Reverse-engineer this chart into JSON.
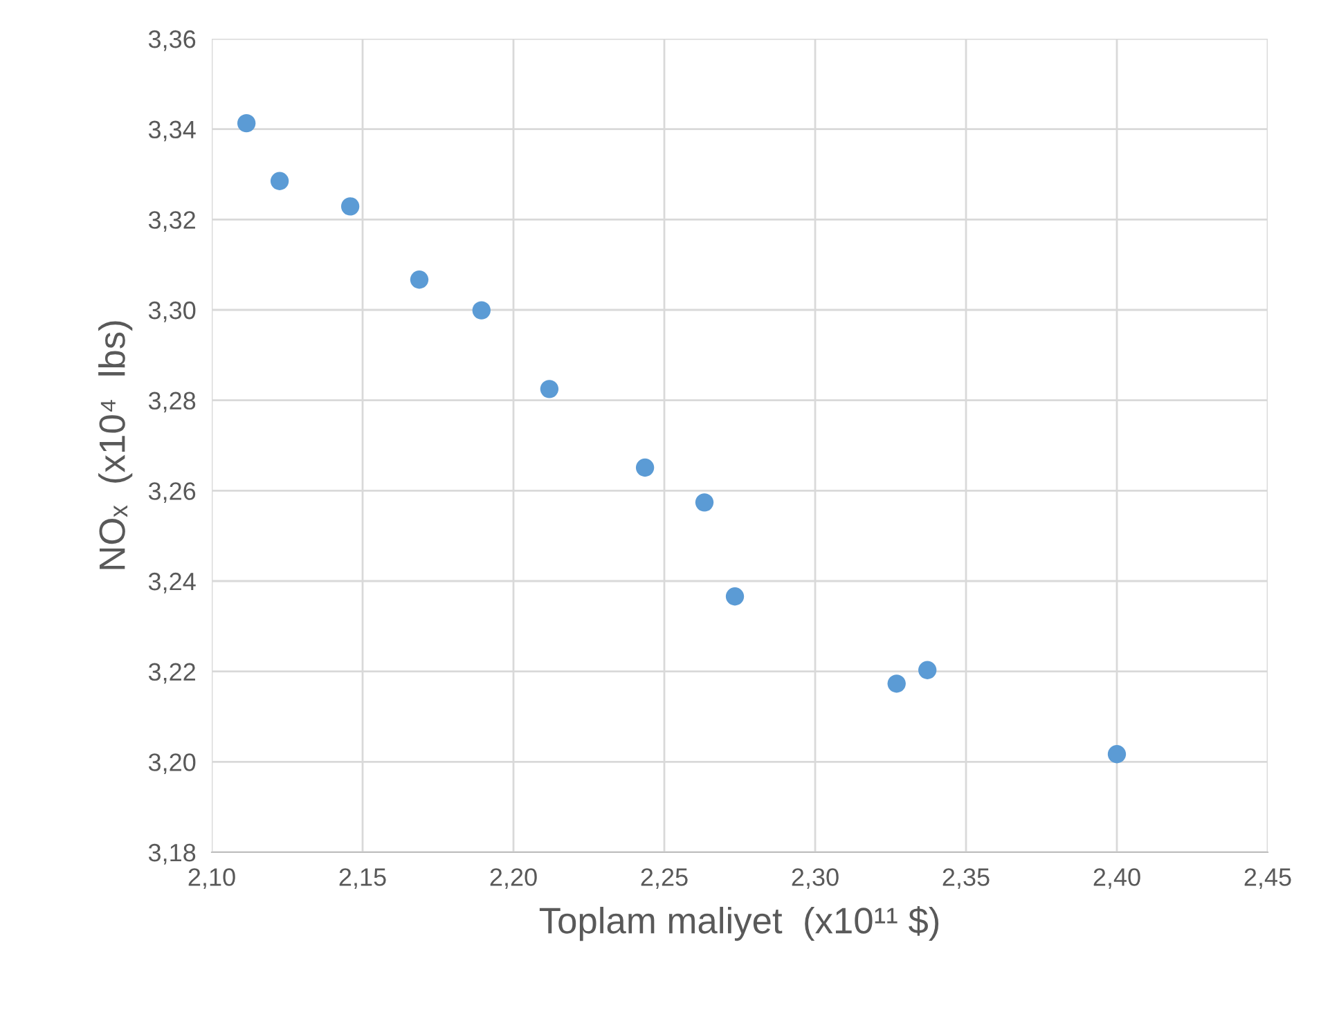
{
  "chart_data": {
    "type": "scatter",
    "xlabel": "Toplam maliyet  (x10¹¹ $)",
    "ylabel": "NOₓ  (x10⁴  lbs)",
    "x": [
      2.1115,
      2.1225,
      2.1459,
      2.1688,
      2.1894,
      2.2119,
      2.2436,
      2.2633,
      2.2734,
      2.327,
      2.3372,
      2.4
    ],
    "series": [
      {
        "color": "#5b9bd5",
        "values": [
          3.3413,
          3.3285,
          3.3229,
          3.3067,
          3.2999,
          3.2825,
          3.2651,
          3.2574,
          3.2366,
          3.2173,
          3.2203,
          3.2017
        ]
      }
    ],
    "xlim": [
      2.1,
      2.45
    ],
    "ylim": [
      3.18,
      3.36
    ],
    "xticks": [
      {
        "value": 2.1,
        "label": "2,10"
      },
      {
        "value": 2.15,
        "label": "2,15"
      },
      {
        "value": 2.2,
        "label": "2,20"
      },
      {
        "value": 2.25,
        "label": "2,25"
      },
      {
        "value": 2.3,
        "label": "2,30"
      },
      {
        "value": 2.35,
        "label": "2,35"
      },
      {
        "value": 2.4,
        "label": "2,40"
      },
      {
        "value": 2.45,
        "label": "2,45"
      }
    ],
    "yticks": [
      {
        "value": 3.18,
        "label": "3,18"
      },
      {
        "value": 3.2,
        "label": "3,20"
      },
      {
        "value": 3.22,
        "label": "3,22"
      },
      {
        "value": 3.24,
        "label": "3,24"
      },
      {
        "value": 3.26,
        "label": "3,26"
      },
      {
        "value": 3.28,
        "label": "3,28"
      },
      {
        "value": 3.3,
        "label": "3,30"
      },
      {
        "value": 3.32,
        "label": "3,32"
      },
      {
        "value": 3.34,
        "label": "3,34"
      },
      {
        "value": 3.36,
        "label": "3,36"
      }
    ],
    "grid": true,
    "marker": "circle"
  }
}
